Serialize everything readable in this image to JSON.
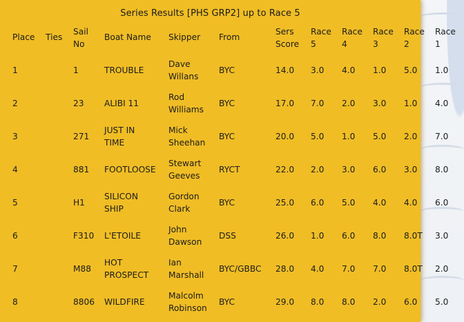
{
  "title": "Series Results [PHS GRP2] up to Race 5",
  "headers": {
    "place": "Place",
    "ties": "Ties",
    "sail_line1": "Sail",
    "sail_line2": "No",
    "boat": "Boat Name",
    "skipper": "Skipper",
    "from": "From",
    "score_line1": "Sers",
    "score_line2": "Score",
    "race5_line1": "Race",
    "race5_line2": "5",
    "race4_line1": "Race",
    "race4_line2": "4",
    "race3_line1": "Race",
    "race3_line2": "3",
    "race2_line1": "Race",
    "race2_line2": "2",
    "race1_line1": "Race",
    "race1_line2": "1"
  },
  "rows": [
    {
      "place": "1",
      "sail": "1",
      "boat1": "TROUBLE",
      "boat2": "",
      "skip1": "Dave",
      "skip2": "Willans",
      "from": "BYC",
      "score": "14.0",
      "r5": "3.0",
      "r4": "4.0",
      "r3": "1.0",
      "r2": "5.0",
      "r1": "1.0"
    },
    {
      "place": "2",
      "sail": "23",
      "boat1": "ALIBI 11",
      "boat2": "",
      "skip1": "Rod",
      "skip2": "Williams",
      "from": "BYC",
      "score": "17.0",
      "r5": "7.0",
      "r4": "2.0",
      "r3": "3.0",
      "r2": "1.0",
      "r1": "4.0"
    },
    {
      "place": "3",
      "sail": "271",
      "boat1": "JUST IN",
      "boat2": "TIME",
      "skip1": "Mick",
      "skip2": "Sheehan",
      "from": "BYC",
      "score": "20.0",
      "r5": "5.0",
      "r4": "1.0",
      "r3": "5.0",
      "r2": "2.0",
      "r1": "7.0"
    },
    {
      "place": "4",
      "sail": "881",
      "boat1": "FOOTLOOSE",
      "boat2": "",
      "skip1": "Stewart",
      "skip2": "Geeves",
      "from": "RYCT",
      "score": "22.0",
      "r5": "2.0",
      "r4": "3.0",
      "r3": "6.0",
      "r2": "3.0",
      "r1": "8.0"
    },
    {
      "place": "5",
      "sail": "H1",
      "boat1": "SILICON",
      "boat2": "SHIP",
      "skip1": "Gordon",
      "skip2": "Clark",
      "from": "BYC",
      "score": "25.0",
      "r5": "6.0",
      "r4": "5.0",
      "r3": "4.0",
      "r2": "4.0",
      "r1": "6.0"
    },
    {
      "place": "6",
      "sail": "F310",
      "boat1": "L'ETOILE",
      "boat2": "",
      "skip1": "John",
      "skip2": "Dawson",
      "from": "DSS",
      "score": "26.0",
      "r5": "1.0",
      "r4": "6.0",
      "r3": "8.0",
      "r2": "8.0T",
      "r1": "3.0"
    },
    {
      "place": "7",
      "sail": "M88",
      "boat1": "HOT",
      "boat2": "PROSPECT",
      "skip1": "Ian",
      "skip2": "Marshall",
      "from": "BYC/GBBC",
      "score": "28.0",
      "r5": "4.0",
      "r4": "7.0",
      "r3": "7.0",
      "r2": "8.0T",
      "r1": "2.0"
    },
    {
      "place": "8",
      "sail": "8806",
      "boat1": "WILDFIRE",
      "boat2": "",
      "skip1": "Malcolm",
      "skip2": "Robinson",
      "from": "BYC",
      "score": "29.0",
      "r5": "8.0",
      "r4": "8.0",
      "r3": "2.0",
      "r2": "6.0",
      "r1": "5.0"
    }
  ]
}
